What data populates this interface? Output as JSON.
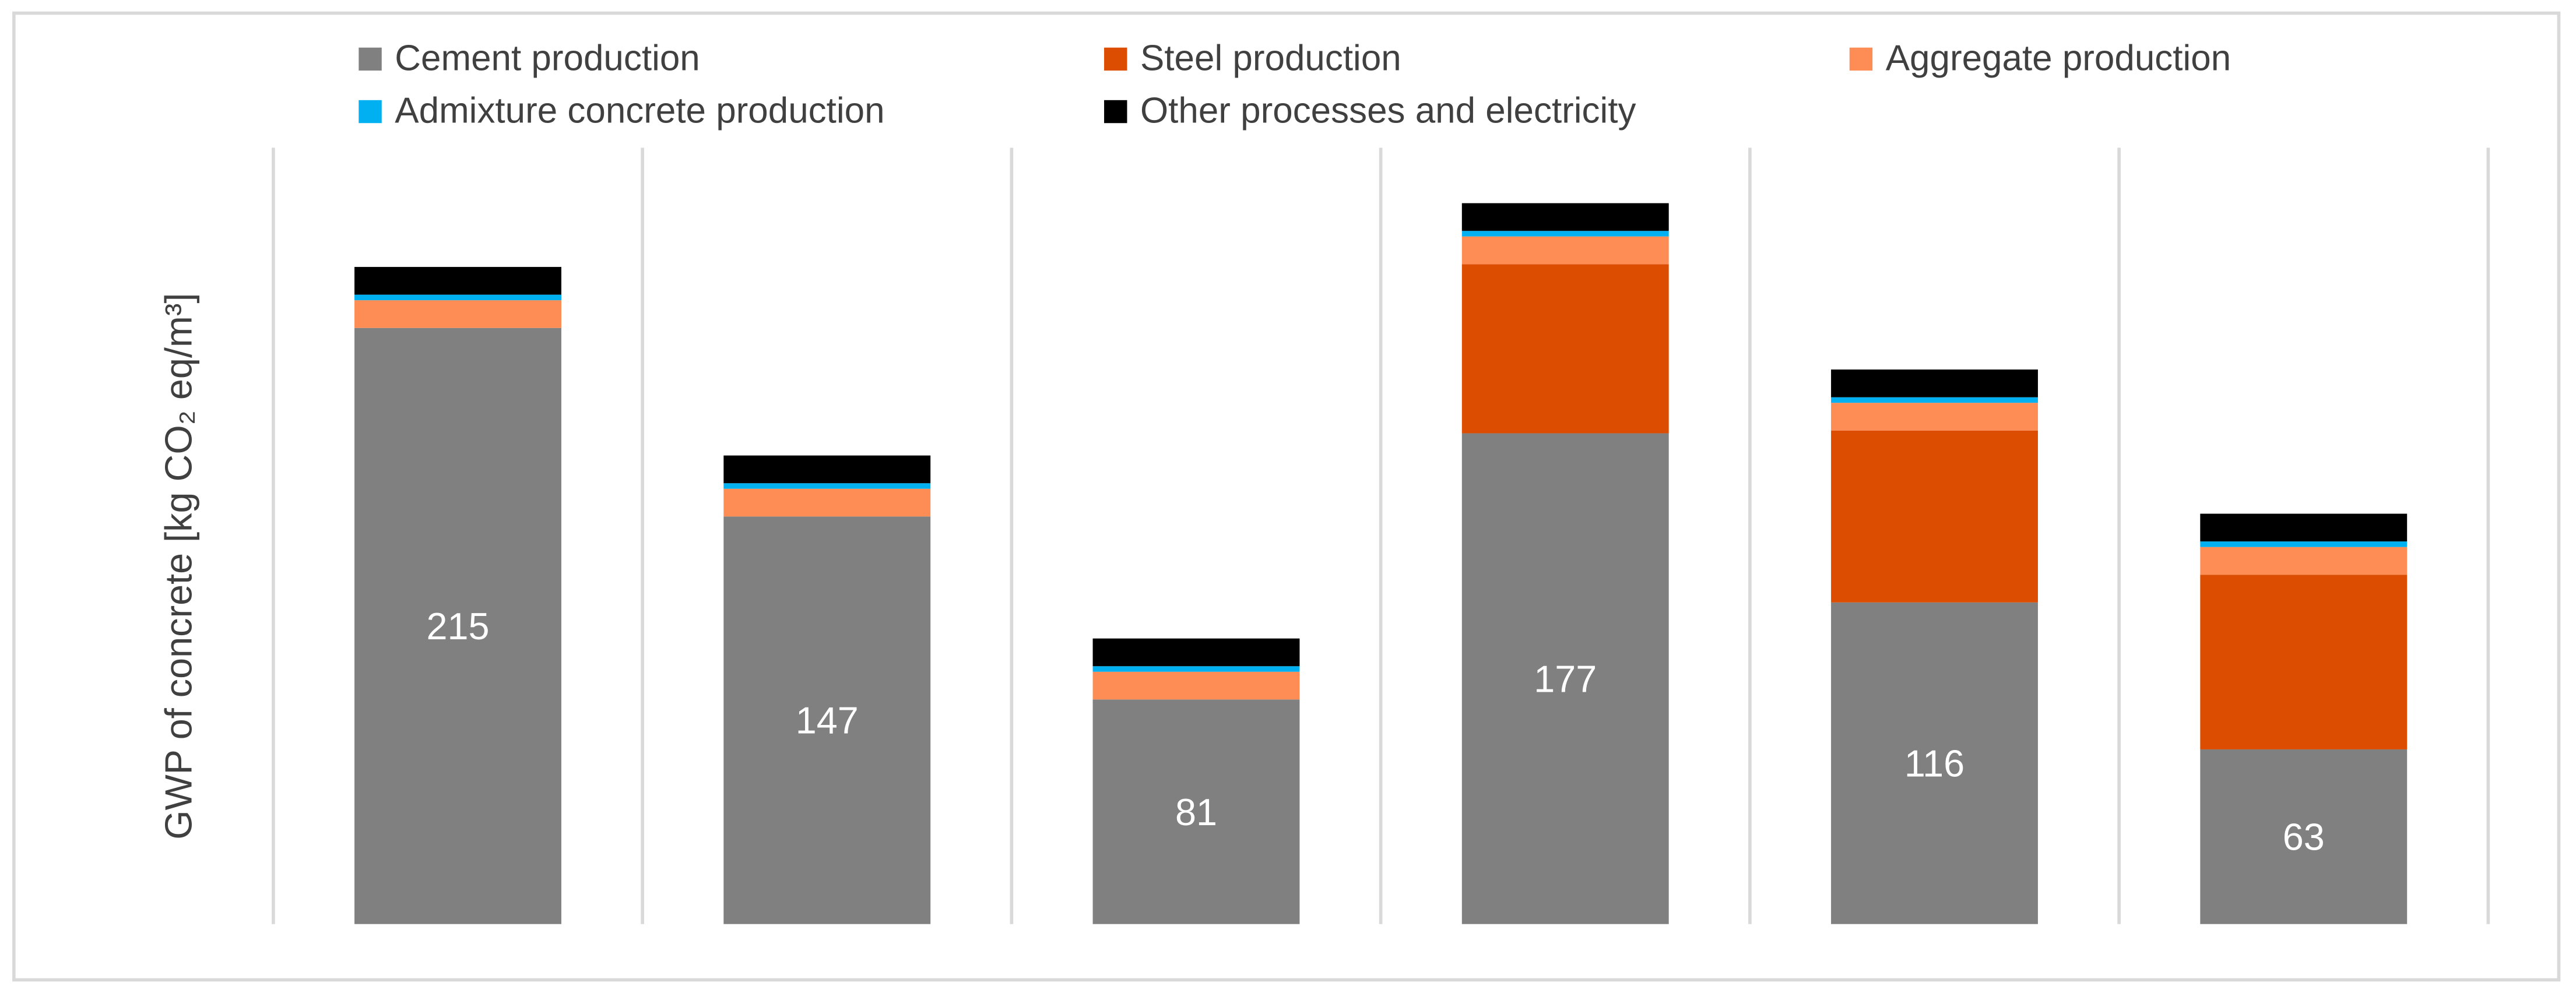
{
  "chart_data": {
    "type": "stacked_bar",
    "y_label": "GWP of concrete [kg CO₂ eq/m³]",
    "categories": [
      null,
      null,
      null,
      null,
      null,
      null
    ],
    "ylim": [
      0,
      280
    ],
    "series": [
      {
        "name": "Cement production",
        "color": "#808080",
        "values": [
          215,
          147,
          81,
          177,
          116,
          63
        ],
        "show_labels": true
      },
      {
        "name": "Steel production",
        "color": "#dc4d01",
        "values": [
          0,
          0,
          0,
          61,
          62,
          63
        ]
      },
      {
        "name": "Aggregate production",
        "color": "#fd8d55",
        "values": [
          10,
          10,
          10,
          10,
          10,
          10
        ]
      },
      {
        "name": "Admixture concrete production",
        "color": "#00b0f0",
        "values": [
          2,
          2,
          2,
          2,
          2,
          2
        ]
      },
      {
        "name": "Other processes and electricity",
        "color": "#000000",
        "values": [
          10,
          10,
          10,
          10,
          10,
          10
        ]
      }
    ]
  }
}
